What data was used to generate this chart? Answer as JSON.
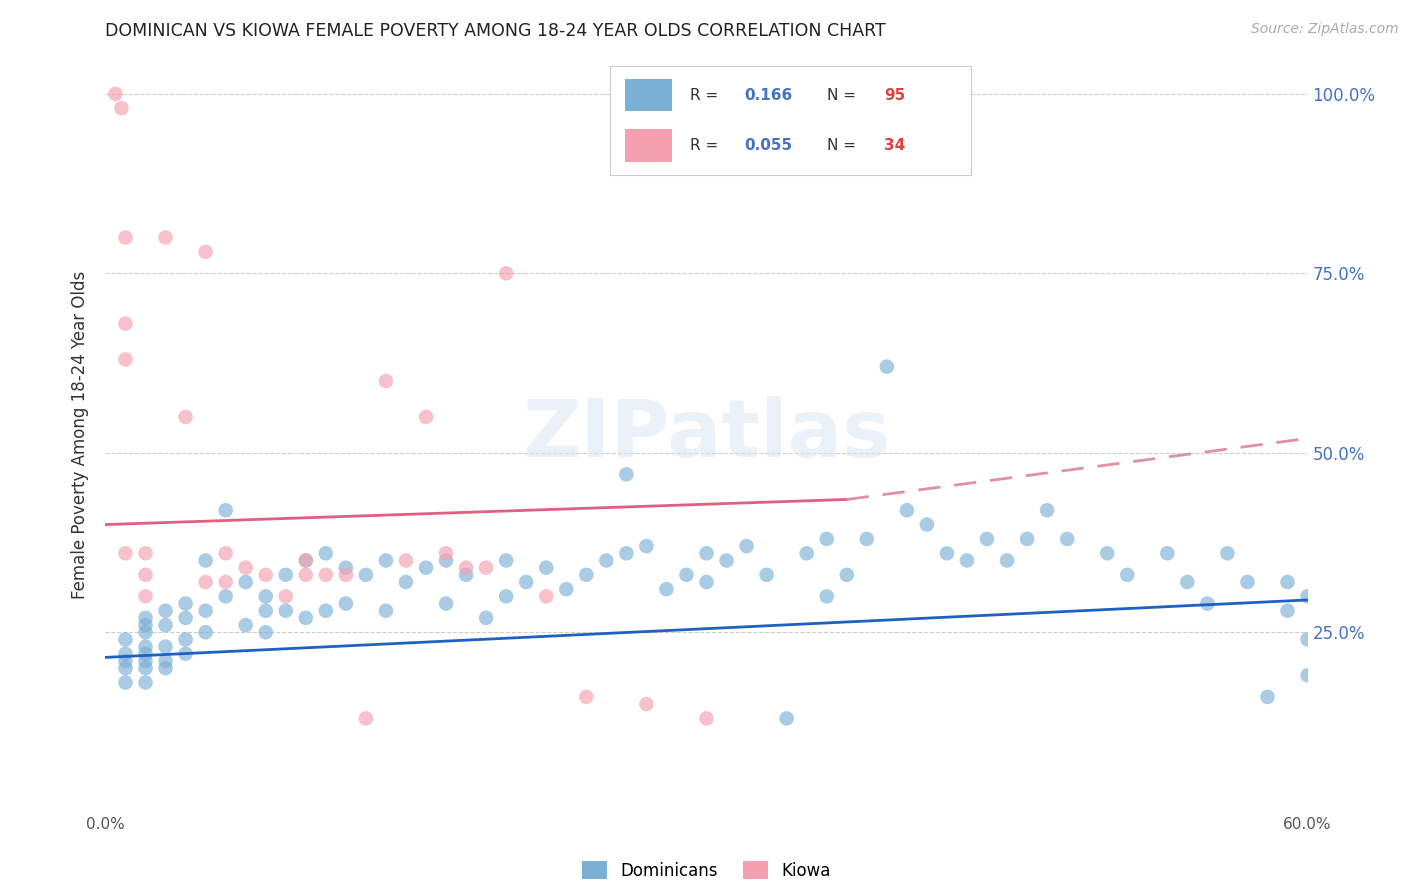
{
  "title": "DOMINICAN VS KIOWA FEMALE POVERTY AMONG 18-24 YEAR OLDS CORRELATION CHART",
  "source": "Source: ZipAtlas.com",
  "ylabel": "Female Poverty Among 18-24 Year Olds",
  "xlim": [
    0.0,
    0.6
  ],
  "ylim": [
    0.0,
    1.05
  ],
  "xticks": [
    0.0,
    0.1,
    0.2,
    0.3,
    0.4,
    0.5,
    0.6
  ],
  "xticklabels": [
    "0.0%",
    "",
    "",
    "",
    "",
    "",
    "60.0%"
  ],
  "right_yticks": [
    1.0,
    0.75,
    0.5,
    0.25
  ],
  "right_yticklabels": [
    "100.0%",
    "75.0%",
    "50.0%",
    "25.0%"
  ],
  "dominicans_color": "#7bafd4",
  "kiowa_color": "#f4a0b0",
  "dominicans_line_color": "#2060c0",
  "kiowa_line_color": "#e06080",
  "kiowa_dash_color": "#e090a0",
  "legend_R_dominicans": "0.166",
  "legend_N_dominicans": "95",
  "legend_R_kiowa": "0.055",
  "legend_N_kiowa": "34",
  "watermark": "ZIPatlas",
  "dominicans_x": [
    0.01,
    0.01,
    0.01,
    0.01,
    0.01,
    0.02,
    0.02,
    0.02,
    0.02,
    0.02,
    0.02,
    0.02,
    0.02,
    0.03,
    0.03,
    0.03,
    0.03,
    0.03,
    0.04,
    0.04,
    0.04,
    0.04,
    0.05,
    0.05,
    0.05,
    0.06,
    0.06,
    0.07,
    0.07,
    0.08,
    0.08,
    0.08,
    0.09,
    0.09,
    0.1,
    0.1,
    0.11,
    0.11,
    0.12,
    0.12,
    0.13,
    0.14,
    0.14,
    0.15,
    0.16,
    0.17,
    0.17,
    0.18,
    0.19,
    0.2,
    0.2,
    0.21,
    0.22,
    0.23,
    0.24,
    0.25,
    0.26,
    0.26,
    0.27,
    0.28,
    0.29,
    0.3,
    0.3,
    0.31,
    0.32,
    0.33,
    0.34,
    0.35,
    0.36,
    0.36,
    0.37,
    0.38,
    0.39,
    0.4,
    0.41,
    0.42,
    0.43,
    0.44,
    0.45,
    0.46,
    0.47,
    0.48,
    0.5,
    0.51,
    0.53,
    0.54,
    0.55,
    0.56,
    0.57,
    0.58,
    0.59,
    0.59,
    0.6,
    0.6,
    0.6
  ],
  "dominicans_y": [
    0.24,
    0.22,
    0.21,
    0.2,
    0.18,
    0.27,
    0.26,
    0.25,
    0.23,
    0.22,
    0.21,
    0.2,
    0.18,
    0.28,
    0.26,
    0.23,
    0.21,
    0.2,
    0.29,
    0.27,
    0.24,
    0.22,
    0.35,
    0.28,
    0.25,
    0.42,
    0.3,
    0.32,
    0.26,
    0.3,
    0.28,
    0.25,
    0.33,
    0.28,
    0.35,
    0.27,
    0.36,
    0.28,
    0.34,
    0.29,
    0.33,
    0.35,
    0.28,
    0.32,
    0.34,
    0.35,
    0.29,
    0.33,
    0.27,
    0.35,
    0.3,
    0.32,
    0.34,
    0.31,
    0.33,
    0.35,
    0.47,
    0.36,
    0.37,
    0.31,
    0.33,
    0.36,
    0.32,
    0.35,
    0.37,
    0.33,
    0.13,
    0.36,
    0.38,
    0.3,
    0.33,
    0.38,
    0.62,
    0.42,
    0.4,
    0.36,
    0.35,
    0.38,
    0.35,
    0.38,
    0.42,
    0.38,
    0.36,
    0.33,
    0.36,
    0.32,
    0.29,
    0.36,
    0.32,
    0.16,
    0.28,
    0.32,
    0.3,
    0.19,
    0.24
  ],
  "kiowa_x": [
    0.005,
    0.008,
    0.01,
    0.01,
    0.01,
    0.01,
    0.02,
    0.02,
    0.02,
    0.03,
    0.04,
    0.05,
    0.05,
    0.06,
    0.06,
    0.07,
    0.08,
    0.09,
    0.1,
    0.1,
    0.11,
    0.12,
    0.13,
    0.14,
    0.15,
    0.16,
    0.17,
    0.18,
    0.19,
    0.2,
    0.22,
    0.24,
    0.27,
    0.3
  ],
  "kiowa_y": [
    1.0,
    0.98,
    0.8,
    0.68,
    0.63,
    0.36,
    0.36,
    0.33,
    0.3,
    0.8,
    0.55,
    0.32,
    0.78,
    0.32,
    0.36,
    0.34,
    0.33,
    0.3,
    0.35,
    0.33,
    0.33,
    0.33,
    0.13,
    0.6,
    0.35,
    0.55,
    0.36,
    0.34,
    0.34,
    0.75,
    0.3,
    0.16,
    0.15,
    0.13
  ],
  "kiowa_line_start_x": 0.0,
  "kiowa_line_end_solid_x": 0.37,
  "kiowa_line_end_dash_x": 0.6,
  "kiowa_line_start_y": 0.4,
  "kiowa_line_end_y": 0.52
}
